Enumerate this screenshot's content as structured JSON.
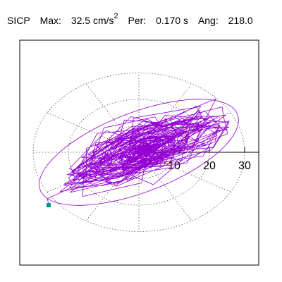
{
  "header": {
    "station": "SICP",
    "max_label": "Max:",
    "max_value": "32.5 cm/s",
    "max_exp": "2",
    "per_label": "Per:",
    "per_value": "0.170 s",
    "ang_label": "Ang:",
    "ang_value": "218.0"
  },
  "chart_data": {
    "type": "line",
    "title": "",
    "coordinate_system": "polar-orbit",
    "radial_ticks": [
      10,
      20,
      30
    ],
    "radial_max": 35,
    "grid": "dotted",
    "angular_spokes_deg": [
      0,
      30,
      60,
      90,
      120,
      150,
      180,
      210,
      240,
      270,
      300,
      330
    ],
    "series_color": "#9400d3",
    "marker_color": "#009980",
    "peak": {
      "amplitude": 32.5,
      "angle_deg": 218.0
    },
    "orbit": {
      "major_axis_angle_deg": 30,
      "semi_major": 31,
      "semi_minor": 11
    }
  }
}
